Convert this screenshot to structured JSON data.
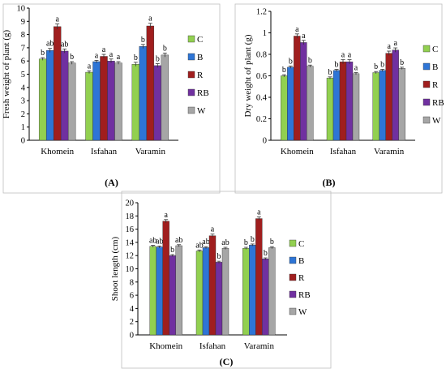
{
  "chart_data": [
    {
      "type": "bar",
      "panel_label": "(A)",
      "title": "",
      "xlabel": "",
      "ylabel": "Fresh weight of plant (g)",
      "ylim": [
        0,
        10
      ],
      "yticks": [
        "0",
        "1",
        "2",
        "3",
        "4",
        "5",
        "6",
        "7",
        "8",
        "9",
        "10"
      ],
      "categories": [
        "Khomein",
        "Isfahan",
        "Varamin"
      ],
      "grid": false,
      "legend_position": "right",
      "series": [
        {
          "name": "C",
          "color": "#92d050",
          "values": [
            6.15,
            5.15,
            5.75
          ],
          "errors": [
            0.1,
            0.1,
            0.15
          ],
          "letters": [
            "b",
            "a",
            "b"
          ]
        },
        {
          "name": "B",
          "color": "#2e75d6",
          "values": [
            6.8,
            5.95,
            7.1
          ],
          "errors": [
            0.15,
            0.1,
            0.15
          ],
          "letters": [
            "ab",
            "a",
            "b"
          ]
        },
        {
          "name": "R",
          "color": "#a01e1e",
          "values": [
            8.6,
            6.35,
            8.65
          ],
          "errors": [
            0.2,
            0.15,
            0.2
          ],
          "letters": [
            "a",
            "a",
            "a"
          ]
        },
        {
          "name": "RB",
          "color": "#7030a0",
          "values": [
            6.75,
            6.0,
            5.65
          ],
          "errors": [
            0.15,
            0.15,
            0.15
          ],
          "letters": [
            "ab",
            "a",
            "b"
          ]
        },
        {
          "name": "W",
          "color": "#a6a6a6",
          "values": [
            5.85,
            5.85,
            6.45
          ],
          "errors": [
            0.1,
            0.1,
            0.15
          ],
          "letters": [
            "b",
            "a",
            "b"
          ]
        }
      ]
    },
    {
      "type": "bar",
      "panel_label": "(B)",
      "title": "",
      "xlabel": "",
      "ylabel": "Dry weight of plant (g)",
      "ylim": [
        0,
        1.2
      ],
      "yticks": [
        "0",
        "0.2",
        "0.4",
        "0.6",
        "0.8",
        "1",
        "1.2"
      ],
      "categories": [
        "Khomein",
        "Isfahan",
        "Varamin"
      ],
      "grid": false,
      "legend_position": "right",
      "series": [
        {
          "name": "C",
          "color": "#92d050",
          "values": [
            0.6,
            0.58,
            0.63
          ],
          "errors": [
            0.01,
            0.01,
            0.01
          ],
          "letters": [
            "b",
            "b",
            "b"
          ]
        },
        {
          "name": "B",
          "color": "#2e75d6",
          "values": [
            0.68,
            0.65,
            0.65
          ],
          "errors": [
            0.01,
            0.01,
            0.01
          ],
          "letters": [
            "b",
            "b",
            "b"
          ]
        },
        {
          "name": "R",
          "color": "#a01e1e",
          "values": [
            0.97,
            0.73,
            0.81
          ],
          "errors": [
            0.02,
            0.02,
            0.02
          ],
          "letters": [
            "a",
            "a",
            "a"
          ]
        },
        {
          "name": "RB",
          "color": "#7030a0",
          "values": [
            0.91,
            0.73,
            0.84
          ],
          "errors": [
            0.02,
            0.02,
            0.02
          ],
          "letters": [
            "a",
            "a",
            "a"
          ]
        },
        {
          "name": "W",
          "color": "#a6a6a6",
          "values": [
            0.69,
            0.62,
            0.67
          ],
          "errors": [
            0.01,
            0.01,
            0.01
          ],
          "letters": [
            "b",
            "a",
            "b"
          ]
        }
      ]
    },
    {
      "type": "bar",
      "panel_label": "(C)",
      "title": "",
      "xlabel": "",
      "ylabel": "Shoot length (cm)",
      "ylim": [
        0,
        20
      ],
      "yticks": [
        "0",
        "2",
        "4",
        "6",
        "8",
        "10",
        "12",
        "14",
        "16",
        "18",
        "20"
      ],
      "categories": [
        "Khomein",
        "Isfahan",
        "Varamin"
      ],
      "grid": false,
      "legend_position": "right",
      "series": [
        {
          "name": "C",
          "color": "#92d050",
          "values": [
            13.4,
            12.7,
            13.1
          ],
          "errors": [
            0.15,
            0.15,
            0.15
          ],
          "letters": [
            "ab",
            "ab",
            "b"
          ]
        },
        {
          "name": "B",
          "color": "#2e75d6",
          "values": [
            13.3,
            13.2,
            13.6
          ],
          "errors": [
            0.15,
            0.15,
            0.15
          ],
          "letters": [
            "ab",
            "ab",
            "b"
          ]
        },
        {
          "name": "R",
          "color": "#a01e1e",
          "values": [
            17.2,
            15.0,
            17.6
          ],
          "errors": [
            0.25,
            0.25,
            0.25
          ],
          "letters": [
            "a",
            "a",
            "a"
          ]
        },
        {
          "name": "RB",
          "color": "#7030a0",
          "values": [
            12.0,
            11.0,
            11.5
          ],
          "errors": [
            0.15,
            0.15,
            0.15
          ],
          "letters": [
            "b",
            "b",
            "b"
          ]
        },
        {
          "name": "W",
          "color": "#a6a6a6",
          "values": [
            13.5,
            13.1,
            13.2
          ],
          "errors": [
            0.15,
            0.15,
            0.15
          ],
          "letters": [
            "ab",
            "ab",
            "b"
          ]
        }
      ]
    }
  ]
}
